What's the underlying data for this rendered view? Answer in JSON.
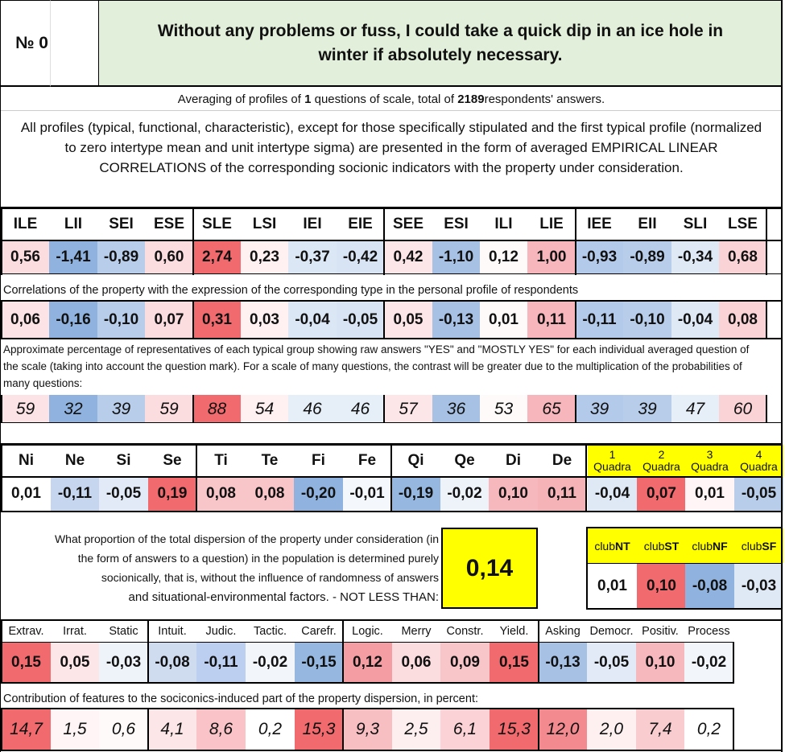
{
  "header": {
    "number_label": "№ 0",
    "question": "Without any problems or fuss, I could take a quick dip in an ice hole in winter if absolutely necessary."
  },
  "averaging": {
    "prefix": "Averaging of profiles of ",
    "questions": "1",
    "middle": " questions of scale, total of ",
    "respondents": "2189",
    "suffix": " respondents' answers."
  },
  "intro": "All profiles (typical, functional, characteristic), except for those specifically stipulated and the first typical profile (normalized to zero intertype mean and unit intertype sigma) are presented in the form of averaged EMPIRICAL LINEAR CORRELATIONS of the corresponding socionic indicators with the property under consideration.",
  "types": {
    "labels": [
      "ILE",
      "LII",
      "SEI",
      "ESE",
      "SLE",
      "LSI",
      "IEI",
      "EIE",
      "SEE",
      "ESI",
      "ILI",
      "LIE",
      "IEE",
      "EII",
      "SLI",
      "LSE"
    ],
    "profile": [
      "0,56",
      "-1,41",
      "-0,89",
      "0,60",
      "2,74",
      "0,23",
      "-0,37",
      "-0,42",
      "0,42",
      "-1,10",
      "0,12",
      "1,00",
      "-0,93",
      "-0,89",
      "-0,34",
      "0,68"
    ],
    "profile_colors": [
      "#fbdde0",
      "#8fb3de",
      "#b8cdea",
      "#fbdcdf",
      "#f06a6e",
      "#fff0f1",
      "#dce7f5",
      "#d8e4f3",
      "#fde6e8",
      "#a6c1e4",
      "#fffafa",
      "#f7b6bb",
      "#b4caea",
      "#b8cdea",
      "#dfe9f5",
      "#fad3d6"
    ],
    "corr_caption": "Correlations of the property with the expression of the corresponding type in the personal profile of respondents",
    "corr": [
      "0,06",
      "-0,16",
      "-0,10",
      "0,07",
      "0,31",
      "0,03",
      "-0,04",
      "-0,05",
      "0,05",
      "-0,13",
      "0,01",
      "0,11",
      "-0,11",
      "-0,10",
      "-0,04",
      "0,08"
    ],
    "corr_colors": [
      "#fce4e6",
      "#8fb3de",
      "#b8cdea",
      "#fbdcdf",
      "#f06a6e",
      "#fff0f1",
      "#dce7f5",
      "#d8e4f3",
      "#fde6e8",
      "#a6c1e4",
      "#fffafa",
      "#f7b6bb",
      "#b4caea",
      "#b8cdea",
      "#dfe9f5",
      "#fad3d6"
    ],
    "pct_caption": "Approximate percentage of representatives of each typical group showing raw answers \"YES\" and \"MOSTLY YES\" for each individual averaged question of the scale (taking into account the question mark). For a scale of many questions, the contrast will be greater due to the multiplication of the probabilities of many questions:",
    "pct": [
      "59",
      "32",
      "39",
      "59",
      "88",
      "54",
      "46",
      "46",
      "57",
      "36",
      "53",
      "65",
      "39",
      "39",
      "47",
      "60"
    ],
    "pct_colors": [
      "#fce4e6",
      "#8fb3de",
      "#b8cdea",
      "#fbdcdf",
      "#f06a6e",
      "#fff0f1",
      "#e6eef8",
      "#e6eef8",
      "#fde6e8",
      "#a6c1e4",
      "#fffafa",
      "#f7b6bb",
      "#b4caea",
      "#b8cdea",
      "#e6eef8",
      "#fad3d6"
    ]
  },
  "functions": {
    "labels": [
      "Ni",
      "Ne",
      "Si",
      "Se",
      "Ti",
      "Te",
      "Fi",
      "Fe",
      "Qi",
      "Qe",
      "Di",
      "De"
    ],
    "values": [
      "0,01",
      "-0,11",
      "-0,05",
      "0,19",
      "0,08",
      "0,08",
      "-0,20",
      "-0,01",
      "-0,19",
      "-0,02",
      "0,10",
      "0,11"
    ],
    "colors": [
      "#ffffff",
      "#c5d6ee",
      "#e1eaf6",
      "#f06a6e",
      "#f8c5c9",
      "#f8c5c9",
      "#8fb3de",
      "#f4f7fc",
      "#95b7e0",
      "#eef3fa",
      "#f6b8bd",
      "#f5b3b8"
    ],
    "quadras": [
      {
        "num": "1",
        "word": "Quadra"
      },
      {
        "num": "2",
        "word": "Quadra"
      },
      {
        "num": "3",
        "word": "Quadra"
      },
      {
        "num": "4",
        "word": "Quadra"
      }
    ],
    "quadra_values": [
      "-0,04",
      "0,07",
      "0,01",
      "-0,05"
    ],
    "quadra_colors": [
      "#dfe9f5",
      "#f06a6e",
      "#fff5f6",
      "#b8cdea"
    ]
  },
  "dispersion": {
    "text": "What proportion of the total dispersion of the property under consideration (in the form of answers to a question) in the population is determined purely socionically, that is, without the influence of randomness of answers",
    "text_last": "and situational-environmental factors. - NOT LESS THAN:",
    "value": "0,14",
    "clubs": [
      {
        "prefix": "club",
        "suffix": "NT"
      },
      {
        "prefix": "club",
        "suffix": "ST"
      },
      {
        "prefix": "club",
        "suffix": "NF"
      },
      {
        "prefix": "club",
        "suffix": "SF"
      }
    ],
    "club_values": [
      "0,01",
      "0,10",
      "-0,08",
      "-0,03"
    ],
    "club_colors": [
      "#ffffff",
      "#f06a6e",
      "#8fb3de",
      "#dfe9f5"
    ]
  },
  "traits": {
    "labels": [
      "Extrav.",
      "Irrat.",
      "Static",
      "Intuit.",
      "Judic.",
      "Tactic.",
      "Carefr.",
      "Logic.",
      "Merry",
      "Constr.",
      "Yield.",
      "Asking",
      "Democr.",
      "Positiv.",
      "Process"
    ],
    "values": [
      "0,15",
      "0,05",
      "-0,03",
      "-0,08",
      "-0,11",
      "-0,02",
      "-0,15",
      "0,12",
      "0,06",
      "0,09",
      "0,15",
      "-0,13",
      "-0,05",
      "0,10",
      "-0,02"
    ],
    "colors": [
      "#f06a6e",
      "#fde6e8",
      "#eef3fa",
      "#cfdcf0",
      "#bccff0",
      "#f2f6fb",
      "#95b7e0",
      "#f49ea3",
      "#fbdcdf",
      "#f8c5c9",
      "#f06a6e",
      "#a6c1e4",
      "#e1eaf6",
      "#f6b8bd",
      "#f2f6fb"
    ],
    "contrib_caption": "Contribution of features to the sociconics-induced part of the property dispersion, in percent:",
    "contrib": [
      "14,7",
      "1,5",
      "0,6",
      "4,1",
      "8,6",
      "0,2",
      "15,3",
      "9,3",
      "2,5",
      "6,1",
      "15,3",
      "12,0",
      "2,0",
      "7,4",
      "0,2"
    ],
    "contrib_colors": [
      "#f06a6e",
      "#fff5f6",
      "#fffafa",
      "#fde6e8",
      "#f9c3c7",
      "#ffffff",
      "#f06a6e",
      "#f8bfc3",
      "#fdeef0",
      "#fbd3d6",
      "#f06a6e",
      "#f38a8f",
      "#fef0f1",
      "#f9ccd0",
      "#ffffff"
    ]
  }
}
